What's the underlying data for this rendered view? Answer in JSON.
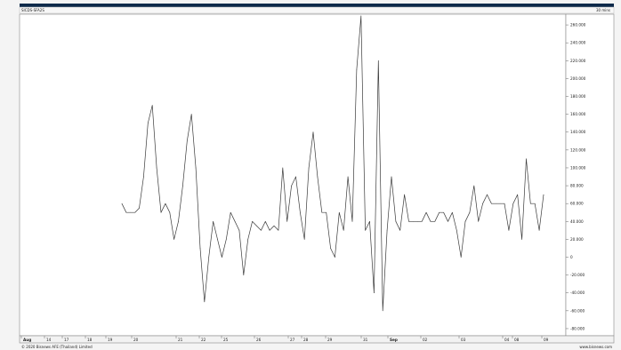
{
  "header": {
    "title": "SICDS-SFA2S",
    "period": "30 mins"
  },
  "footer": {
    "copyright": "© 2020 Bisnews AFE (Thailand) Limited",
    "website": "www.bisnews.com"
  },
  "colors": {
    "header_bar": "#0d2a4a",
    "plot_bg": "#ffffff",
    "line": "#3a3a3a",
    "gridline": "#dddddd"
  },
  "chart_data": {
    "type": "line",
    "title": "SICDS-SFA2S",
    "series": [
      {
        "values": [
          60,
          50,
          50,
          50,
          55,
          90,
          150,
          170,
          100,
          50,
          60,
          50,
          20,
          40,
          80,
          130,
          160,
          100,
          10,
          -50,
          0,
          40,
          20,
          0,
          20,
          50,
          40,
          30,
          -20,
          20,
          40,
          35,
          30,
          40,
          30,
          35,
          30,
          100,
          40,
          80,
          90,
          50,
          20,
          100,
          140,
          90,
          50,
          50,
          10,
          0,
          50,
          30,
          90,
          40,
          210,
          270,
          30,
          40,
          -40,
          220,
          -60,
          30,
          90,
          40,
          30,
          70,
          40,
          40,
          40,
          40,
          50,
          40,
          40,
          50,
          50,
          40,
          50,
          30,
          0,
          40,
          50,
          80,
          40,
          60,
          70,
          60,
          60,
          60,
          60,
          30,
          60,
          70,
          20,
          110,
          60,
          60,
          30,
          70
        ]
      }
    ],
    "y_ticks": [
      "260.000",
      "240.000",
      "220.000",
      "200.000",
      "180.000",
      "160.000",
      "140.000",
      "120.000",
      "100.000",
      "80.000",
      "60.000",
      "40.000",
      "20.000",
      "0",
      "-20.000",
      "-40.000",
      "-60.000",
      "-80.000"
    ],
    "x_ticks": [
      "Aug",
      "14",
      "17",
      "18",
      "19",
      "20",
      "21",
      "22",
      "25",
      "26",
      "27",
      "28",
      "29",
      "31",
      "Sep",
      "02",
      "03",
      "04",
      "08",
      "09"
    ],
    "ylim": [
      -88,
      272
    ],
    "grid": false,
    "legend": "none"
  }
}
